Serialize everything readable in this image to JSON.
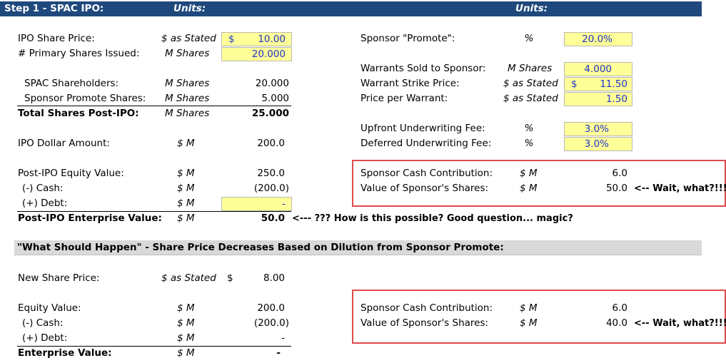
{
  "header": {
    "title": "Step 1 - SPAC IPO:",
    "units_left": "Units:",
    "units_right": "Units:"
  },
  "left": {
    "ipo_price": {
      "label": "IPO Share Price:",
      "unit": "$ as Stated",
      "currency": "$",
      "value": "10.00"
    },
    "primary_shares": {
      "label": "# Primary Shares Issued:",
      "unit": "M Shares",
      "value": "20.000"
    },
    "spac_holders": {
      "label": "SPAC Shareholders:",
      "unit": "M Shares",
      "value": "20.000"
    },
    "promote_shares": {
      "label": "Sponsor Promote Shares:",
      "unit": "M Shares",
      "value": "5.000"
    },
    "total_shares": {
      "label": "Total Shares Post-IPO:",
      "unit": "M Shares",
      "value": "25.000"
    },
    "ipo_dollar": {
      "label": "IPO Dollar Amount:",
      "unit": "$ M",
      "value": "200.0"
    },
    "equity_value": {
      "label": "Post-IPO Equity Value:",
      "unit": "$ M",
      "value": "250.0"
    },
    "cash": {
      "label": "(-) Cash:",
      "unit": "$ M",
      "value": "(200.0)"
    },
    "debt": {
      "label": "(+) Debt:",
      "unit": "$ M",
      "value": "-"
    },
    "enterprise_value": {
      "label": "Post-IPO Enterprise Value:",
      "unit": "$ M",
      "value": "50.0",
      "note": "<--- ??? How is this possible? Good question... magic?"
    }
  },
  "right": {
    "promote": {
      "label": "Sponsor \"Promote\":",
      "unit": "%",
      "value": "20.0%"
    },
    "warrants_sold": {
      "label": "Warrants Sold to Sponsor:",
      "unit": "M Shares",
      "value": "4.000"
    },
    "strike": {
      "label": "Warrant Strike Price:",
      "unit": "$ as Stated",
      "currency": "$",
      "value": "11.50"
    },
    "price_per_warrant": {
      "label": "Price per Warrant:",
      "unit": "$ as Stated",
      "value": "1.50"
    },
    "upfront_fee": {
      "label": "Upfront Underwriting Fee:",
      "unit": "%",
      "value": "3.0%"
    },
    "deferred_fee": {
      "label": "Deferred Underwriting Fee:",
      "unit": "%",
      "value": "3.0%"
    },
    "box1": {
      "cash_label": "Sponsor Cash Contribution:",
      "cash_unit": "$ M",
      "cash_value": "6.0",
      "shares_label": "Value of Sponsor's Shares:",
      "shares_unit": "$ M",
      "shares_value": "50.0",
      "note": "<-- Wait, what?!!!"
    }
  },
  "section2": {
    "title": "\"What Should Happen\" - Share Price Decreases Based on Dilution from Sponsor Promote:",
    "new_price": {
      "label": "New Share Price:",
      "unit": "$ as Stated",
      "currency": "$",
      "value": "8.00"
    },
    "equity_value": {
      "label": "Equity Value:",
      "unit": "$ M",
      "value": "200.0"
    },
    "cash": {
      "label": "(-) Cash:",
      "unit": "$ M",
      "value": "(200.0)"
    },
    "debt": {
      "label": "(+) Debt:",
      "unit": "$ M",
      "value": "-"
    },
    "enterprise_value": {
      "label": "Enterprise Value:",
      "unit": "$ M",
      "value": "-"
    },
    "box2": {
      "cash_label": "Sponsor Cash Contribution:",
      "cash_unit": "$ M",
      "cash_value": "6.0",
      "shares_label": "Value of Sponsor's Shares:",
      "shares_unit": "$ M",
      "shares_value": "40.0",
      "note": "<-- Wait, what?!!!"
    }
  }
}
